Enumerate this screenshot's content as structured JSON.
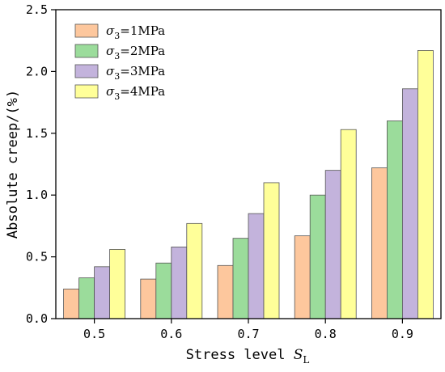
{
  "chart_data": {
    "type": "bar",
    "categories": [
      "0.5",
      "0.6",
      "0.7",
      "0.8",
      "0.9"
    ],
    "series": [
      {
        "name": "σ3=1MPa",
        "values": [
          0.24,
          0.32,
          0.43,
          0.67,
          1.22
        ],
        "color": "#fdc79d"
      },
      {
        "name": "σ3=2MPa",
        "values": [
          0.33,
          0.45,
          0.65,
          1.0,
          1.6
        ],
        "color": "#9bdc9b"
      },
      {
        "name": "σ3=3MPa",
        "values": [
          0.42,
          0.58,
          0.85,
          1.2,
          1.86
        ],
        "color": "#c3b3dc"
      },
      {
        "name": "σ3=4MPa",
        "values": [
          0.56,
          0.77,
          1.1,
          1.53,
          2.17
        ],
        "color": "#ffff99"
      }
    ],
    "title": "",
    "xlabel": "Stress level S_L",
    "ylabel": "Absolute creep/(%)",
    "ylim": [
      0,
      2.5
    ],
    "yticks": [
      "0.0",
      "0.5",
      "1.0",
      "1.5",
      "2.0",
      "2.5"
    ],
    "legend_position": "top-left",
    "grid": false
  },
  "xlabel_parts": {
    "text": "Stress level ",
    "symbol": "S",
    "subscript": "L"
  },
  "legend_parts": [
    {
      "symbol": "σ",
      "subscript": "3",
      "rest": "=1MPa"
    },
    {
      "symbol": "σ",
      "subscript": "3",
      "rest": "=2MPa"
    },
    {
      "symbol": "σ",
      "subscript": "3",
      "rest": "=3MPa"
    },
    {
      "symbol": "σ",
      "subscript": "3",
      "rest": "=4MPa"
    }
  ]
}
